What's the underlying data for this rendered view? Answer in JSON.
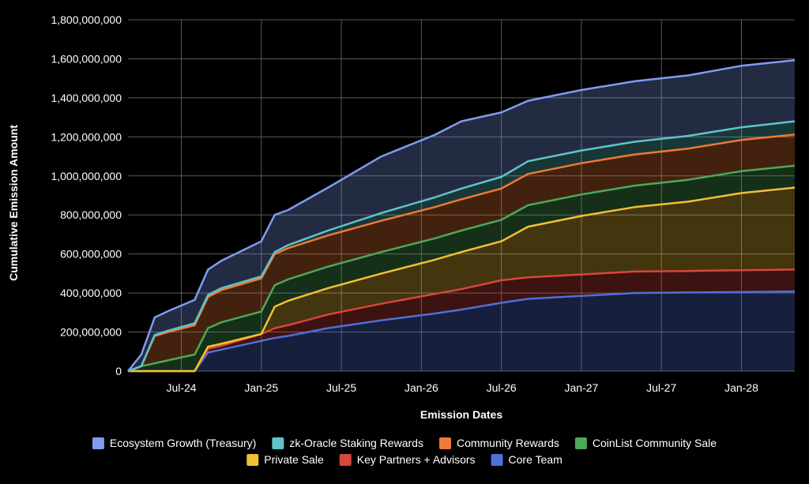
{
  "chart_data": {
    "type": "area",
    "stacked": true,
    "xlabel": "Emission Dates",
    "ylabel": "Cumulative Emission Amount",
    "x_ticks": [
      "Jul-24",
      "Jan-25",
      "Jul-25",
      "Jan-26",
      "Jul-26",
      "Jan-27",
      "Jul-27",
      "Jan-28"
    ],
    "y_ticks": [
      "0",
      "200,000,000",
      "400,000,000",
      "600,000,000",
      "800,000,000",
      "1,000,000,000",
      "1,200,000,000",
      "1,400,000,000",
      "1,600,000,000",
      "1,800,000,000"
    ],
    "ylim": [
      0,
      1800000000
    ],
    "xlim": [
      "2024-03",
      "2028-05"
    ],
    "grid": true,
    "legend_position": "bottom",
    "x": [
      "2024-03",
      "2024-04",
      "2024-05",
      "2024-06",
      "2024-08",
      "2024-09",
      "2024-10",
      "2025-01",
      "2025-02",
      "2025-03",
      "2025-06",
      "2025-10",
      "2026-02",
      "2026-04",
      "2026-07",
      "2026-09",
      "2027-01",
      "2027-05",
      "2027-09",
      "2028-01",
      "2028-05"
    ],
    "series": [
      {
        "name": "Core Team",
        "color": "#4f6fd9",
        "values": [
          0,
          0,
          0,
          0,
          0,
          95000000,
          110000000,
          155000000,
          170000000,
          180000000,
          220000000,
          260000000,
          295000000,
          315000000,
          350000000,
          370000000,
          385000000,
          400000000,
          403000000,
          405000000,
          408000000
        ]
      },
      {
        "name": "Key Partners + Advisors",
        "color": "#d9463b",
        "values": [
          0,
          0,
          0,
          0,
          0,
          20000000,
          20000000,
          35000000,
          50000000,
          55000000,
          70000000,
          85000000,
          100000000,
          105000000,
          115000000,
          110000000,
          110000000,
          110000000,
          110000000,
          112000000,
          112000000
        ]
      },
      {
        "name": "Private Sale",
        "color": "#f2c033",
        "values": [
          0,
          0,
          0,
          0,
          0,
          10000000,
          10000000,
          0,
          110000000,
          125000000,
          135000000,
          155000000,
          175000000,
          190000000,
          200000000,
          260000000,
          300000000,
          330000000,
          355000000,
          395000000,
          420000000
        ]
      },
      {
        "name": "CoinList Community Sale",
        "color": "#4ea85a",
        "values": [
          0,
          25000000,
          40000000,
          55000000,
          85000000,
          95000000,
          110000000,
          115000000,
          110000000,
          110000000,
          110000000,
          110000000,
          110000000,
          110000000,
          110000000,
          110000000,
          110000000,
          110000000,
          112000000,
          112000000,
          112000000
        ]
      },
      {
        "name": "Community Rewards",
        "color": "#ee7a34",
        "values": [
          0,
          0,
          140000000,
          145000000,
          150000000,
          160000000,
          165000000,
          170000000,
          160000000,
          160000000,
          160000000,
          160000000,
          160000000,
          160000000,
          160000000,
          160000000,
          160000000,
          160000000,
          160000000,
          160000000,
          160000000
        ]
      },
      {
        "name": "zk-Oracle Staking Rewards",
        "color": "#5fc4c8",
        "values": [
          0,
          0,
          5000000,
          7000000,
          10000000,
          10000000,
          10000000,
          10000000,
          10000000,
          15000000,
          25000000,
          40000000,
          50000000,
          55000000,
          60000000,
          65000000,
          65000000,
          65000000,
          65000000,
          65000000,
          68000000
        ]
      },
      {
        "name": "Ecosystem Growth (Treasury)",
        "color": "#7f9cf0",
        "values": [
          0,
          60000000,
          90000000,
          100000000,
          120000000,
          130000000,
          140000000,
          180000000,
          190000000,
          180000000,
          220000000,
          290000000,
          320000000,
          345000000,
          330000000,
          310000000,
          310000000,
          310000000,
          310000000,
          315000000,
          313000000
        ]
      }
    ],
    "legend": [
      "Ecosystem Growth (Treasury)",
      "zk-Oracle Staking Rewards",
      "Community Rewards",
      "CoinList Community Sale",
      "Private Sale",
      "Key Partners + Advisors",
      "Core Team"
    ]
  }
}
